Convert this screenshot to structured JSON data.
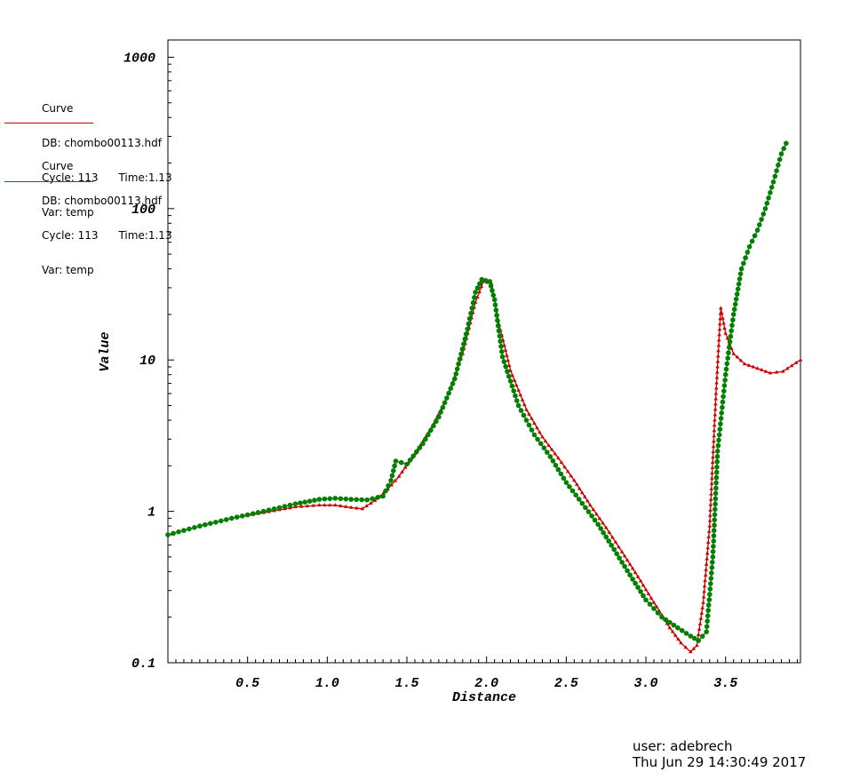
{
  "legends": [
    {
      "lines": [
        "Curve",
        "DB: chombo00113.hdf",
        "Cycle: 113      Time:1.13",
        "Var: temp"
      ],
      "color": "#cc0000"
    },
    {
      "lines": [
        "Curve",
        "DB: chombo00113.hdf",
        "Cycle: 113      Time:1.13",
        "Var: temp"
      ],
      "color": "#007f00"
    }
  ],
  "footer": {
    "user": "user: adebrech",
    "date": "Thu Jun 29 14:30:49 2017"
  },
  "chart_data": {
    "type": "line",
    "xlabel": "Distance",
    "ylabel": "Value",
    "yscale": "log",
    "xlim": [
      0.0,
      3.97
    ],
    "ylim": [
      0.1,
      1300
    ],
    "xticks": [
      "0.5",
      "1.0",
      "1.5",
      "2.0",
      "2.5",
      "3.0",
      "3.5"
    ],
    "xtick_values": [
      0.5,
      1.0,
      1.5,
      2.0,
      2.5,
      3.0,
      3.5
    ],
    "yticks": [
      "0.1",
      "1",
      "10",
      "100",
      "1000"
    ],
    "ytick_values": [
      0.1,
      1,
      10,
      100,
      1000
    ],
    "grid": false,
    "series": [
      {
        "color": "#cc0000",
        "marker": "triangle",
        "x": [
          0.0,
          0.2,
          0.4,
          0.6,
          0.8,
          0.95,
          1.05,
          1.15,
          1.22,
          1.3,
          1.38,
          1.45,
          1.55,
          1.65,
          1.75,
          1.85,
          1.93,
          1.98,
          2.03,
          2.08,
          2.15,
          2.25,
          2.35,
          2.45,
          2.55,
          2.65,
          2.75,
          2.85,
          2.95,
          3.05,
          3.15,
          3.22,
          3.28,
          3.32,
          3.36,
          3.4,
          3.44,
          3.47,
          3.5,
          3.55,
          3.62,
          3.7,
          3.78,
          3.86,
          3.97
        ],
        "y": [
          0.7,
          0.8,
          0.9,
          0.98,
          1.07,
          1.1,
          1.1,
          1.06,
          1.04,
          1.18,
          1.4,
          1.7,
          2.4,
          3.5,
          5.6,
          11.0,
          24.0,
          33.0,
          32.0,
          17.0,
          8.5,
          4.7,
          3.1,
          2.25,
          1.6,
          1.1,
          0.78,
          0.54,
          0.37,
          0.25,
          0.17,
          0.135,
          0.118,
          0.13,
          0.25,
          0.8,
          6.0,
          22.0,
          15.0,
          11.0,
          9.4,
          8.8,
          8.2,
          8.4,
          10.0
        ]
      },
      {
        "color": "#007f00",
        "marker": "circle",
        "x": [
          0.0,
          0.2,
          0.4,
          0.6,
          0.8,
          0.95,
          1.05,
          1.15,
          1.25,
          1.35,
          1.4,
          1.43,
          1.5,
          1.6,
          1.7,
          1.8,
          1.88,
          1.93,
          1.97,
          2.02,
          2.05,
          2.1,
          2.2,
          2.3,
          2.4,
          2.5,
          2.6,
          2.7,
          2.8,
          2.9,
          3.0,
          3.1,
          3.2,
          3.28,
          3.33,
          3.38,
          3.42,
          3.45,
          3.5,
          3.55,
          3.6,
          3.65,
          3.7,
          3.75,
          3.8,
          3.85,
          3.88
        ],
        "y": [
          0.7,
          0.8,
          0.9,
          1.0,
          1.12,
          1.2,
          1.22,
          1.2,
          1.19,
          1.26,
          1.6,
          2.15,
          2.05,
          2.8,
          4.2,
          7.5,
          16.0,
          28.0,
          34.0,
          33.0,
          25.0,
          10.5,
          5.0,
          3.2,
          2.3,
          1.55,
          1.13,
          0.82,
          0.56,
          0.38,
          0.26,
          0.2,
          0.17,
          0.15,
          0.14,
          0.16,
          0.5,
          2.5,
          8.0,
          20.0,
          40.0,
          56.0,
          72.0,
          100.0,
          150.0,
          230.0,
          270.0
        ]
      }
    ]
  }
}
